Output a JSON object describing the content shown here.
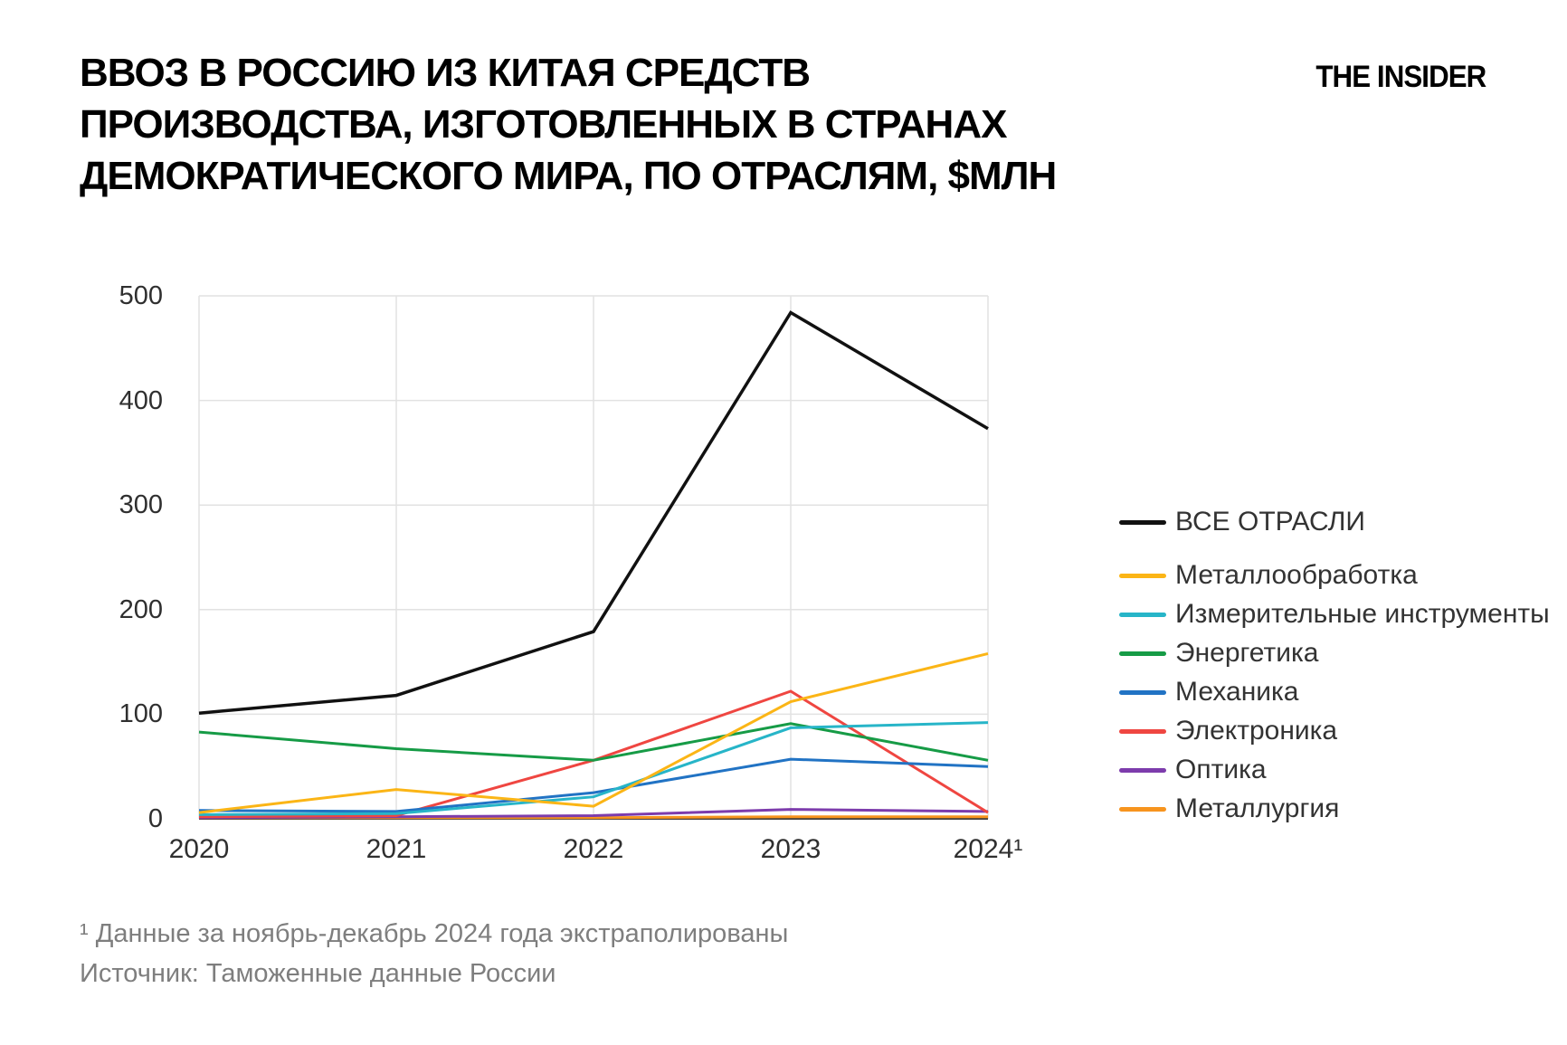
{
  "header": {
    "title": "ВВОЗ В РОССИЮ ИЗ КИТАЯ СРЕДСТВ\nПРОИЗВОДСТВА, ИЗГОТОВЛЕННЫХ В СТРАНАХ\nДЕМОКРАТИЧЕСКОГО МИРА, ПО ОТРАСЛЯМ, $МЛН",
    "logo": "THE INSIDER"
  },
  "chart_data": {
    "type": "line",
    "categories": [
      "2020",
      "2021",
      "2022",
      "2023",
      "2024¹"
    ],
    "yticks": [
      0,
      100,
      200,
      300,
      400,
      500
    ],
    "ylim": [
      0,
      500
    ],
    "grid": true,
    "legend_position": "right",
    "xlabel": "",
    "ylabel": "",
    "series": [
      {
        "name": "ВСЕ ОТРАСЛИ",
        "color": "#111111",
        "values": [
          101,
          118,
          179,
          484,
          373
        ]
      },
      {
        "name": "Металлообработка",
        "color": "#FBB516",
        "values": [
          6,
          28,
          12,
          112,
          158
        ]
      },
      {
        "name": "Измерительные инструменты",
        "color": "#27B5C8",
        "values": [
          4,
          5,
          21,
          87,
          92
        ]
      },
      {
        "name": "Энергетика",
        "color": "#169B46",
        "values": [
          83,
          67,
          56,
          91,
          56
        ]
      },
      {
        "name": "Механика",
        "color": "#2173C4",
        "values": [
          8,
          7,
          25,
          57,
          50
        ]
      },
      {
        "name": "Электроника",
        "color": "#EF4641",
        "values": [
          2,
          3,
          56,
          122,
          6
        ]
      },
      {
        "name": "Оптика",
        "color": "#7D3CAC",
        "values": [
          1,
          2,
          3,
          9,
          7
        ]
      },
      {
        "name": "Металлургия",
        "color": "#F7941E",
        "values": [
          1,
          1,
          1,
          2,
          2
        ]
      }
    ]
  },
  "footnotes": [
    "¹ Данные за ноябрь-декабрь 2024 года экстраполированы",
    "Источник: Таможенные данные России"
  ],
  "colors": {
    "grid": "#e2e2e2",
    "axis": "#3d3d3d",
    "tick_text": "#2f2f2f",
    "footnote_text": "#7e7e7e",
    "background": "#ffffff"
  }
}
